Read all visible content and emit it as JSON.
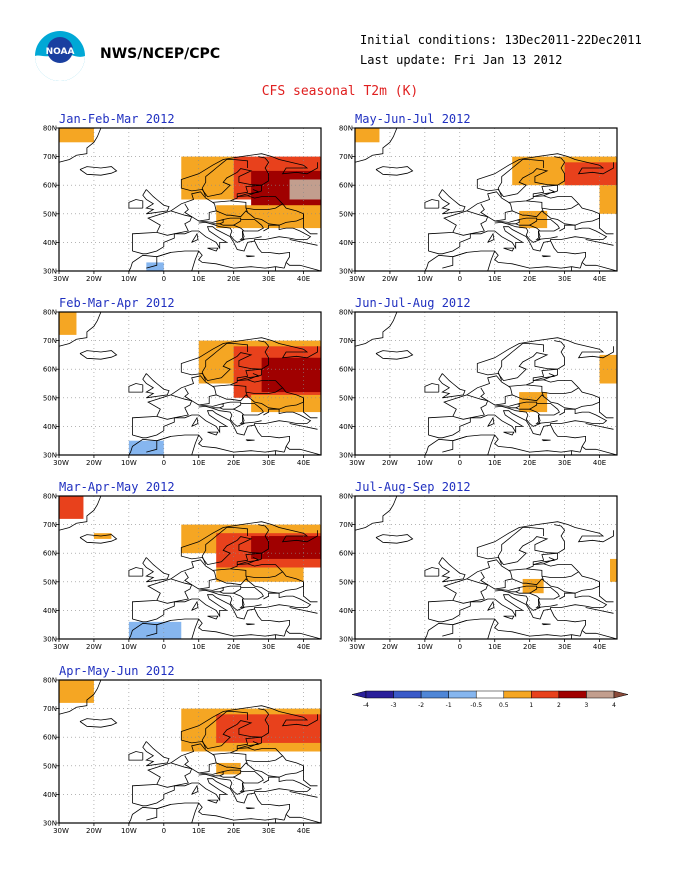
{
  "header": {
    "agency": "NWS/NCEP/CPC",
    "initial_conditions": "Initial conditions: 13Dec2011-22Dec2011",
    "last_update": "Last update: Fri Jan 13 2012",
    "title": "CFS seasonal T2m (K)"
  },
  "logo": {
    "icon": "noaa-logo-icon",
    "text": "NOAA"
  },
  "axes": {
    "x_ticks": [
      "30W",
      "20W",
      "10W",
      "0",
      "10E",
      "20E",
      "30E",
      "40E"
    ],
    "y_ticks": [
      "30N",
      "40N",
      "50N",
      "60N",
      "70N",
      "80N"
    ],
    "lon_range": [
      -30,
      45
    ],
    "lat_range": [
      30,
      80
    ]
  },
  "colors": {
    "-4": "#2a1f9a",
    "-3": "#3a5ac8",
    "-2": "#4f86d6",
    "-1": "#86b6ef",
    "1": "#f5a623",
    "2": "#e8411c",
    "3": "#a00000",
    "4": "#c29e8e",
    "land": "#000000",
    "grid": "#888888"
  },
  "panels": [
    {
      "title": "Jan-Feb-Mar 2012",
      "anomalies": [
        {
          "lon": -30,
          "lat": 75,
          "w": 10,
          "h": 5,
          "c": 1
        },
        {
          "lon": -5,
          "lat": 30,
          "w": 5,
          "h": 3,
          "c": -1
        },
        {
          "lon": 5,
          "lat": 55,
          "w": 15,
          "h": 15,
          "c": 1
        },
        {
          "lon": 20,
          "lat": 55,
          "w": 25,
          "h": 15,
          "c": 2
        },
        {
          "lon": 25,
          "lat": 50,
          "w": 20,
          "h": 15,
          "c": 3
        },
        {
          "lon": 36,
          "lat": 55,
          "w": 9,
          "h": 7,
          "c": 4
        },
        {
          "lon": 15,
          "lat": 45,
          "w": 30,
          "h": 8,
          "c": 1
        }
      ]
    },
    {
      "title": "May-Jun-Jul 2012",
      "anomalies": [
        {
          "lon": -30,
          "lat": 75,
          "w": 7,
          "h": 5,
          "c": 1
        },
        {
          "lon": 15,
          "lat": 60,
          "w": 30,
          "h": 10,
          "c": 1
        },
        {
          "lon": 30,
          "lat": 60,
          "w": 15,
          "h": 8,
          "c": 2
        },
        {
          "lon": 17,
          "lat": 45,
          "w": 8,
          "h": 6,
          "c": 1
        },
        {
          "lon": 40,
          "lat": 50,
          "w": 5,
          "h": 10,
          "c": 1
        }
      ]
    },
    {
      "title": "Feb-Mar-Apr 2012",
      "anomalies": [
        {
          "lon": -30,
          "lat": 72,
          "w": 5,
          "h": 8,
          "c": 1
        },
        {
          "lon": -10,
          "lat": 30,
          "w": 10,
          "h": 5,
          "c": -1
        },
        {
          "lon": 10,
          "lat": 55,
          "w": 35,
          "h": 15,
          "c": 1
        },
        {
          "lon": 20,
          "lat": 50,
          "w": 25,
          "h": 18,
          "c": 2
        },
        {
          "lon": 28,
          "lat": 52,
          "w": 17,
          "h": 12,
          "c": 3
        },
        {
          "lon": 25,
          "lat": 45,
          "w": 20,
          "h": 6,
          "c": 1
        }
      ]
    },
    {
      "title": "Jun-Jul-Aug 2012",
      "anomalies": [
        {
          "lon": 17,
          "lat": 45,
          "w": 8,
          "h": 7,
          "c": 1
        },
        {
          "lon": 40,
          "lat": 55,
          "w": 5,
          "h": 10,
          "c": 1
        }
      ]
    },
    {
      "title": "Mar-Apr-May 2012",
      "anomalies": [
        {
          "lon": -30,
          "lat": 72,
          "w": 7,
          "h": 8,
          "c": 2
        },
        {
          "lon": -20,
          "lat": 65,
          "w": 5,
          "h": 2,
          "c": 1
        },
        {
          "lon": -10,
          "lat": 30,
          "w": 15,
          "h": 6,
          "c": -1
        },
        {
          "lon": 5,
          "lat": 60,
          "w": 40,
          "h": 10,
          "c": 1
        },
        {
          "lon": 15,
          "lat": 55,
          "w": 30,
          "h": 12,
          "c": 2
        },
        {
          "lon": 25,
          "lat": 58,
          "w": 20,
          "h": 8,
          "c": 3
        },
        {
          "lon": 15,
          "lat": 50,
          "w": 25,
          "h": 5,
          "c": 1
        }
      ]
    },
    {
      "title": "Jul-Aug-Sep 2012",
      "anomalies": [
        {
          "lon": 18,
          "lat": 46,
          "w": 6,
          "h": 5,
          "c": 1
        },
        {
          "lon": 43,
          "lat": 50,
          "w": 2,
          "h": 8,
          "c": 1
        }
      ]
    },
    {
      "title": "Apr-May-Jun 2012",
      "anomalies": [
        {
          "lon": -30,
          "lat": 72,
          "w": 10,
          "h": 8,
          "c": 1
        },
        {
          "lon": 5,
          "lat": 55,
          "w": 40,
          "h": 15,
          "c": 1
        },
        {
          "lon": 15,
          "lat": 58,
          "w": 30,
          "h": 10,
          "c": 2
        },
        {
          "lon": 15,
          "lat": 47,
          "w": 7,
          "h": 4,
          "c": 1
        }
      ]
    }
  ],
  "colorbar": {
    "labels": [
      "-4",
      "-3",
      "-2",
      "-1",
      "-0.5",
      "0.5",
      "1",
      "2",
      "3",
      "4"
    ],
    "fills": [
      "#2a1f9a",
      "#3a5ac8",
      "#4f86d6",
      "#86b6ef",
      "#ffffff",
      "#f5a623",
      "#e8411c",
      "#a00000",
      "#c29e8e"
    ],
    "end_low": "#2a1f9a",
    "end_high": "#8a4a3a"
  }
}
